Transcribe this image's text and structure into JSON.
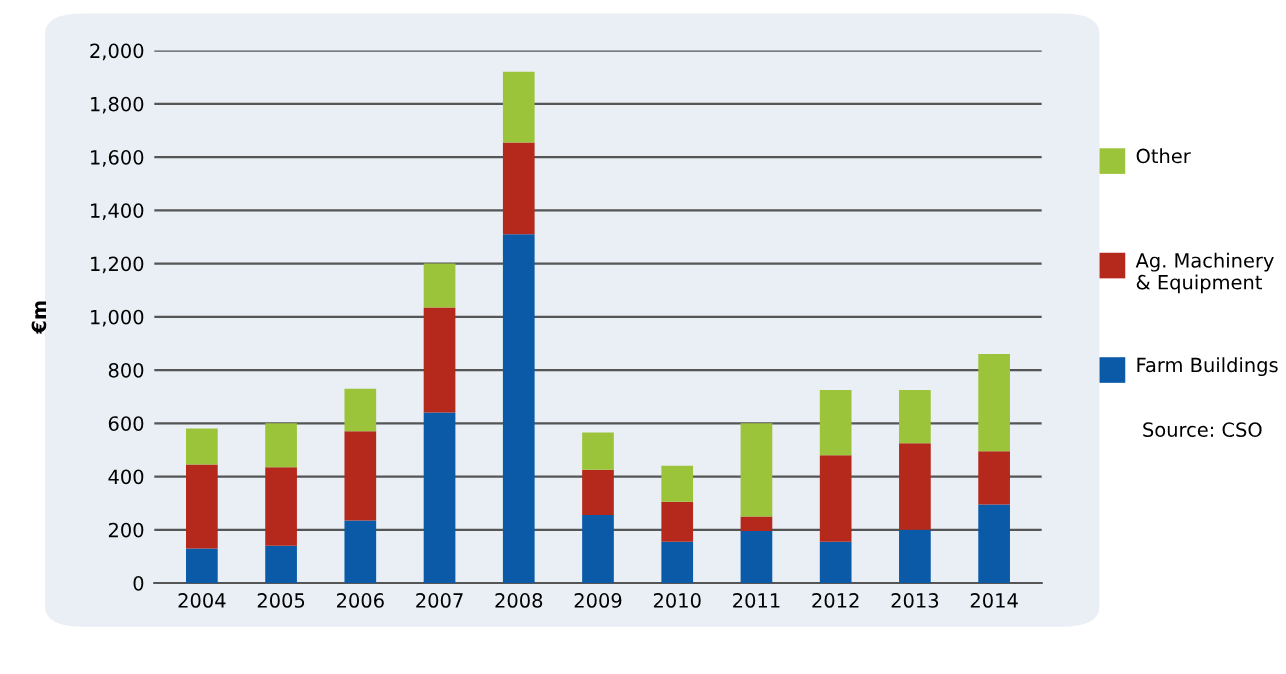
{
  "chart_data": {
    "type": "bar",
    "stacked": true,
    "ylabel": "€m",
    "categories": [
      "2004",
      "2005",
      "2006",
      "2007",
      "2008",
      "2009",
      "2010",
      "2011",
      "2012",
      "2013",
      "2014"
    ],
    "series": [
      {
        "name": "Farm Buildings",
        "color": "#0a5aa8",
        "values": [
          130,
          140,
          235,
          640,
          1310,
          255,
          155,
          195,
          155,
          200,
          295
        ]
      },
      {
        "name": "Ag. Machinery & Equipment",
        "color": "#b5281c",
        "values": [
          315,
          295,
          335,
          395,
          345,
          170,
          150,
          55,
          325,
          325,
          200
        ]
      },
      {
        "name": "Other",
        "color": "#9cc43a",
        "values": [
          135,
          165,
          160,
          165,
          265,
          140,
          135,
          350,
          245,
          200,
          365
        ]
      }
    ],
    "ylim": [
      0,
      2000
    ],
    "yticks": [
      {
        "value": 0,
        "label": "0"
      },
      {
        "value": 200,
        "label": "200"
      },
      {
        "value": 400,
        "label": "400"
      },
      {
        "value": 600,
        "label": "600"
      },
      {
        "value": 800,
        "label": "800"
      },
      {
        "value": 1000,
        "label": "1,000"
      },
      {
        "value": 1200,
        "label": "1,200"
      },
      {
        "value": 1400,
        "label": "1,400"
      },
      {
        "value": 1600,
        "label": "1,600"
      },
      {
        "value": 1800,
        "label": "1,800"
      },
      {
        "value": 2000,
        "label": "2,000"
      }
    ],
    "grid": "y",
    "legend": "right",
    "annotations": [
      "Source: CSO"
    ]
  }
}
